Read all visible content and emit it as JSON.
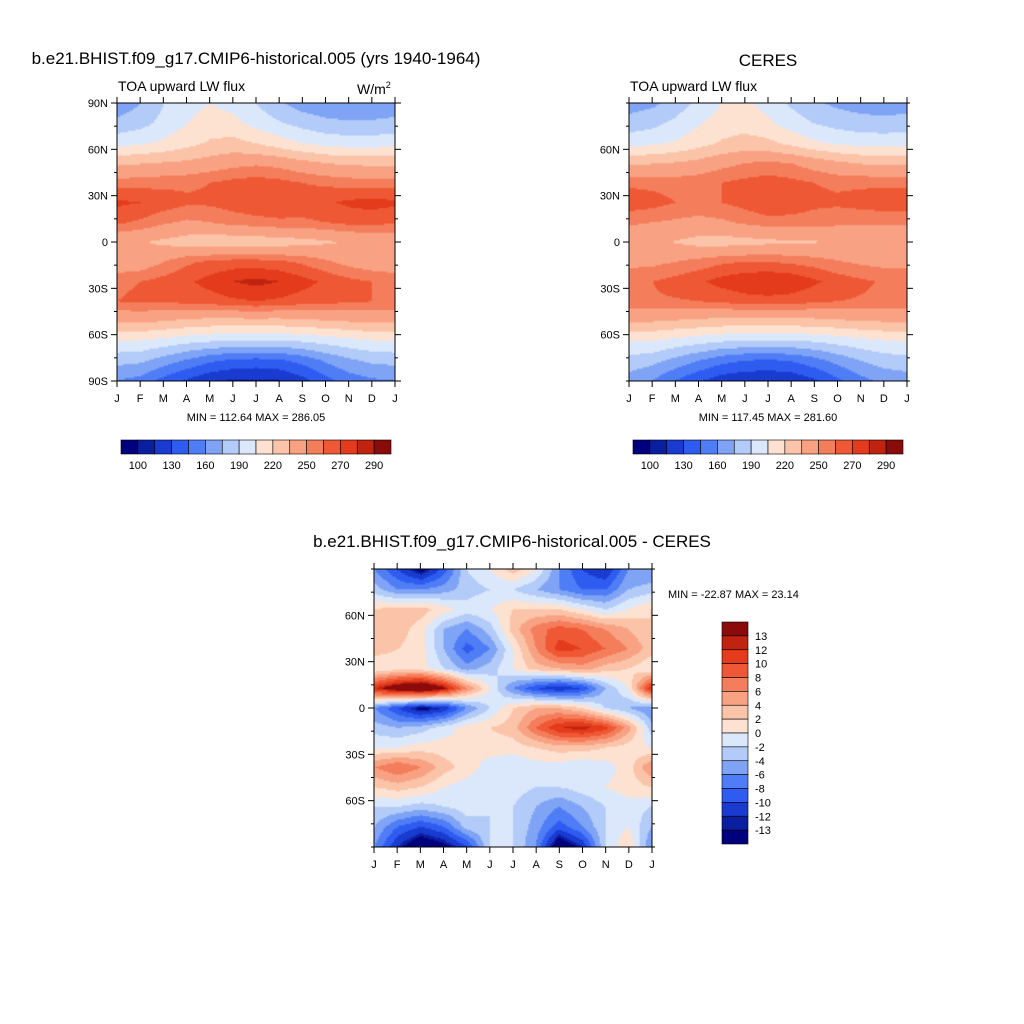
{
  "chart_data": [
    {
      "type": "heatmap",
      "panel": "model",
      "title": "b.e21.BHIST.f09_g17.CMIP6-historical.005 (yrs 1940-1964)",
      "subtitle_left": "TOA upward LW flux",
      "units": "W/m",
      "units_sup": "2",
      "x_ticklabels": [
        "J",
        "F",
        "M",
        "A",
        "M",
        "J",
        "J",
        "A",
        "S",
        "O",
        "N",
        "D",
        "J"
      ],
      "y_ticklabels": [
        "90N",
        "60N",
        "30N",
        "0",
        "30S",
        "60S",
        "90S"
      ],
      "y_tickvalues": [
        90,
        60,
        30,
        0,
        -30,
        -60,
        -90
      ],
      "ylim": [
        -90,
        90
      ],
      "stats": "MIN = 112.64 MAX = 286.05",
      "colorbar": {
        "labels": [
          "100",
          "130",
          "160",
          "190",
          "220",
          "250",
          "270",
          "290"
        ],
        "colors": [
          "#00007f",
          "#0a1fa0",
          "#1a3bd0",
          "#2f5cf0",
          "#4f7df5",
          "#7fa4f6",
          "#b3cbf8",
          "#dbe8fb",
          "#fde2d2",
          "#fbc3a8",
          "#f8a283",
          "#f47d5b",
          "#ef5834",
          "#e33b1b",
          "#c0230f",
          "#8b0b0b"
        ]
      },
      "z": [
        [
          165,
          175,
          190,
          200,
          205,
          200,
          190,
          178,
          168,
          163,
          160,
          162,
          165
        ],
        [
          180,
          185,
          195,
          205,
          212,
          210,
          200,
          192,
          185,
          180,
          178,
          178,
          180
        ],
        [
          200,
          203,
          208,
          215,
          222,
          225,
          220,
          212,
          205,
          200,
          198,
          198,
          200
        ],
        [
          232,
          234,
          236,
          238,
          242,
          246,
          248,
          246,
          240,
          235,
          232,
          232,
          232
        ],
        [
          255,
          256,
          257,
          258,
          260,
          263,
          265,
          263,
          260,
          258,
          256,
          255,
          255
        ],
        [
          272,
          270,
          266,
          262,
          262,
          265,
          268,
          268,
          266,
          268,
          272,
          274,
          272
        ],
        [
          262,
          258,
          252,
          248,
          250,
          254,
          256,
          258,
          258,
          260,
          263,
          263,
          262
        ],
        [
          238,
          236,
          232,
          228,
          226,
          225,
          226,
          228,
          230,
          233,
          236,
          238,
          238
        ],
        [
          240,
          242,
          250,
          258,
          262,
          264,
          264,
          262,
          258,
          252,
          246,
          242,
          240
        ],
        [
          258,
          260,
          264,
          268,
          274,
          280,
          283,
          280,
          274,
          268,
          263,
          260,
          258
        ],
        [
          260,
          262,
          262,
          263,
          265,
          268,
          270,
          268,
          265,
          263,
          262,
          260,
          260
        ],
        [
          238,
          238,
          235,
          232,
          230,
          230,
          230,
          230,
          232,
          234,
          236,
          238,
          238
        ],
        [
          205,
          204,
          200,
          195,
          192,
          190,
          190,
          190,
          192,
          196,
          200,
          204,
          205
        ],
        [
          180,
          178,
          168,
          158,
          148,
          142,
          140,
          142,
          150,
          162,
          172,
          178,
          180
        ],
        [
          160,
          155,
          140,
          128,
          118,
          114,
          113,
          115,
          125,
          140,
          152,
          158,
          160
        ]
      ]
    },
    {
      "type": "heatmap",
      "panel": "obs",
      "title": "CERES",
      "subtitle_left": "TOA upward LW flux",
      "x_ticklabels": [
        "J",
        "F",
        "M",
        "A",
        "M",
        "J",
        "J",
        "A",
        "S",
        "O",
        "N",
        "D",
        "J"
      ],
      "y_ticklabels": [
        "60N",
        "30N",
        "0",
        "30S",
        "60S"
      ],
      "y_tickvalues": [
        60,
        30,
        0,
        -30,
        -60
      ],
      "ylim": [
        -90,
        90
      ],
      "stats": "MIN = 117.45 MAX = 281.60",
      "colorbar": {
        "labels": [
          "100",
          "130",
          "160",
          "190",
          "220",
          "250",
          "270",
          "290"
        ],
        "colors": [
          "#00007f",
          "#0a1fa0",
          "#1a3bd0",
          "#2f5cf0",
          "#4f7df5",
          "#7fa4f6",
          "#b3cbf8",
          "#dbe8fb",
          "#fde2d2",
          "#fbc3a8",
          "#f8a283",
          "#f47d5b",
          "#ef5834",
          "#e33b1b",
          "#c0230f",
          "#8b0b0b"
        ]
      },
      "z": [
        [
          168,
          172,
          182,
          195,
          205,
          208,
          200,
          188,
          178,
          172,
          168,
          166,
          168
        ],
        [
          182,
          186,
          194,
          204,
          212,
          214,
          208,
          198,
          190,
          185,
          182,
          181,
          182
        ],
        [
          200,
          202,
          207,
          214,
          222,
          226,
          224,
          216,
          208,
          203,
          200,
          199,
          200
        ],
        [
          232,
          234,
          236,
          240,
          246,
          250,
          252,
          250,
          244,
          238,
          234,
          232,
          232
        ],
        [
          258,
          257,
          256,
          257,
          260,
          263,
          265,
          263,
          260,
          258,
          258,
          258,
          258
        ],
        [
          266,
          264,
          260,
          258,
          260,
          264,
          270,
          268,
          263,
          262,
          264,
          266,
          266
        ],
        [
          252,
          250,
          248,
          246,
          248,
          252,
          255,
          255,
          254,
          253,
          252,
          252,
          252
        ],
        [
          240,
          238,
          234,
          230,
          229,
          230,
          232,
          233,
          234,
          236,
          238,
          240,
          240
        ],
        [
          246,
          247,
          250,
          254,
          258,
          260,
          260,
          258,
          255,
          251,
          248,
          246,
          246
        ],
        [
          258,
          260,
          264,
          268,
          274,
          278,
          280,
          278,
          272,
          266,
          262,
          259,
          258
        ],
        [
          258,
          259,
          259,
          260,
          262,
          265,
          266,
          265,
          262,
          260,
          259,
          258,
          258
        ],
        [
          236,
          236,
          234,
          232,
          230,
          230,
          230,
          230,
          231,
          233,
          235,
          236,
          236
        ],
        [
          206,
          205,
          200,
          196,
          192,
          190,
          190,
          190,
          192,
          196,
          200,
          204,
          206
        ],
        [
          184,
          180,
          170,
          160,
          150,
          145,
          143,
          146,
          154,
          165,
          175,
          182,
          184
        ],
        [
          168,
          160,
          145,
          132,
          122,
          118,
          117,
          119,
          128,
          142,
          155,
          164,
          168
        ]
      ]
    },
    {
      "type": "heatmap",
      "panel": "difference",
      "title": "b.e21.BHIST.f09_g17.CMIP6-historical.005 - CERES",
      "x_ticklabels": [
        "J",
        "F",
        "M",
        "A",
        "M",
        "J",
        "J",
        "A",
        "S",
        "O",
        "N",
        "D",
        "J"
      ],
      "y_ticklabels": [
        "60N",
        "30N",
        "0",
        "30S",
        "60S"
      ],
      "y_tickvalues": [
        60,
        30,
        0,
        -30,
        -60
      ],
      "ylim": [
        -90,
        90
      ],
      "stats": "MIN = -22.87 MAX =  23.14",
      "colorbar": {
        "labels": [
          "13",
          "12",
          "10",
          "8",
          "6",
          "4",
          "2",
          "0",
          "-2",
          "-4",
          "-6",
          "-8",
          "-10",
          "-12",
          "-13"
        ],
        "colors": [
          "#8b0b0b",
          "#c0230f",
          "#e33b1b",
          "#ef5834",
          "#f47d5b",
          "#f8a283",
          "#fbc3a8",
          "#fde2d2",
          "#dbe8fb",
          "#b3cbf8",
          "#7fa4f6",
          "#4f7df5",
          "#2f5cf0",
          "#1a3bd0",
          "#0a1fa0",
          "#00007f"
        ]
      },
      "z": [
        [
          -6,
          -10,
          -14,
          -9,
          -2,
          0,
          3,
          0,
          -6,
          -10,
          -12,
          -6,
          -6
        ],
        [
          -3,
          -6,
          -6,
          -5,
          -3,
          -2,
          -2,
          -4,
          -6,
          -8,
          -8,
          -4,
          -3
        ],
        [
          2,
          3,
          3,
          1,
          -1,
          0,
          2,
          2,
          2,
          0,
          -2,
          0,
          2
        ],
        [
          2,
          3,
          1,
          -4,
          -6,
          -3,
          3,
          7,
          9,
          8,
          6,
          4,
          2
        ],
        [
          3,
          2,
          1,
          -4,
          -9,
          -6,
          0,
          6,
          11,
          10,
          8,
          6,
          3
        ],
        [
          0,
          1,
          1,
          -2,
          -5,
          -3,
          0,
          3,
          4,
          5,
          3,
          2,
          0
        ],
        [
          12,
          16,
          18,
          14,
          6,
          0,
          -6,
          -10,
          -12,
          -10,
          -4,
          0,
          12
        ],
        [
          -6,
          -10,
          -14,
          -12,
          -6,
          -2,
          2,
          4,
          4,
          2,
          -2,
          -4,
          -6
        ],
        [
          -3,
          -4,
          -3,
          -1,
          1,
          2,
          3,
          8,
          12,
          13,
          11,
          5,
          -3
        ],
        [
          0,
          0,
          1,
          1,
          0,
          1,
          1,
          2,
          3,
          3,
          2,
          1,
          0
        ],
        [
          6,
          8,
          6,
          3,
          1,
          -1,
          -2,
          -1,
          -1,
          -2,
          -1,
          1,
          6
        ],
        [
          2,
          3,
          2,
          0,
          -1,
          -1,
          -1,
          -2,
          -2,
          -1,
          0,
          1,
          2
        ],
        [
          -2,
          -2,
          -3,
          -2,
          -1,
          -2,
          -2,
          -4,
          -6,
          -4,
          -2,
          -1,
          -2
        ],
        [
          -4,
          -8,
          -10,
          -8,
          -3,
          -2,
          -2,
          -5,
          -9,
          -6,
          -2,
          0,
          -4
        ],
        [
          -6,
          -12,
          -16,
          -14,
          -10,
          -2,
          -2,
          -6,
          -16,
          -12,
          -2,
          2,
          -6
        ]
      ]
    }
  ]
}
